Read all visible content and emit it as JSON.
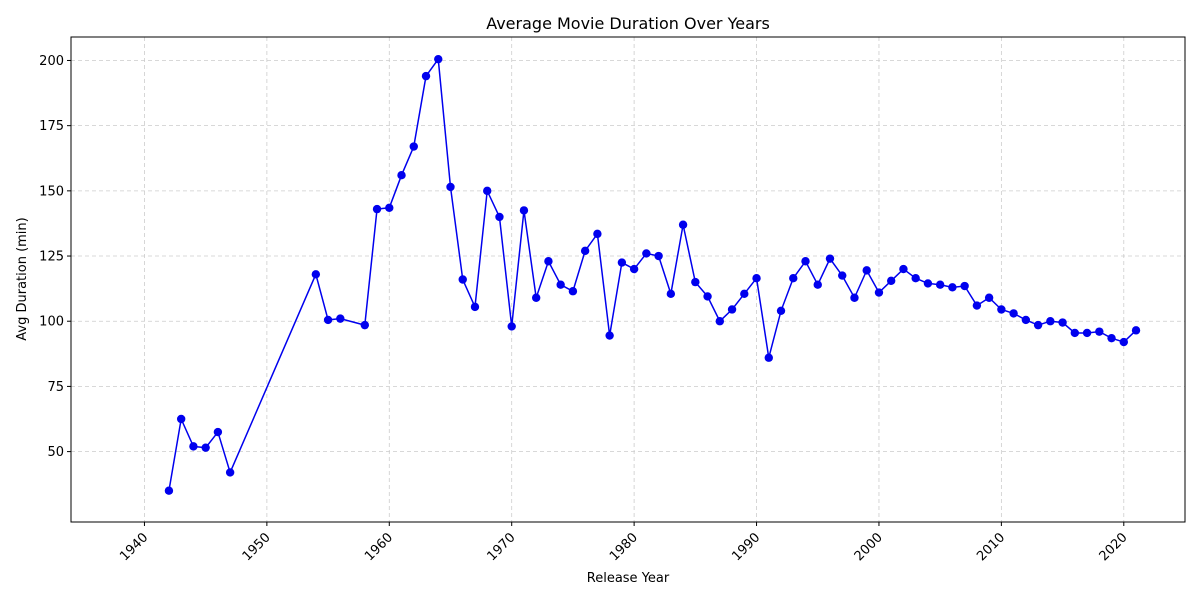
{
  "chart_data": {
    "type": "line",
    "title": "Average Movie Duration Over Years",
    "xlabel": "Release Year",
    "ylabel": "Avg Duration (min)",
    "xlim": [
      1934,
      2025
    ],
    "ylim": [
      23,
      209
    ],
    "xticks": [
      1940,
      1950,
      1960,
      1970,
      1980,
      1990,
      2000,
      2010,
      2020
    ],
    "yticks": [
      50,
      75,
      100,
      125,
      150,
      175,
      200
    ],
    "grid": true,
    "color": "#0000ee",
    "series": [
      {
        "x": [
          1942,
          1943,
          1944,
          1945,
          1946,
          1947,
          1954,
          1955,
          1956,
          1958,
          1959,
          1960,
          1961,
          1962,
          1963,
          1964,
          1965,
          1966,
          1967,
          1968,
          1969,
          1970,
          1971,
          1972,
          1973,
          1974,
          1975,
          1976,
          1977,
          1978,
          1979,
          1980,
          1981,
          1982,
          1983,
          1984,
          1985,
          1986,
          1987,
          1988,
          1989,
          1990,
          1991,
          1992,
          1993,
          1994,
          1995,
          1996,
          1997,
          1998,
          1999,
          2000,
          2001,
          2002,
          2003,
          2004,
          2005,
          2006,
          2007,
          2008,
          2009,
          2010,
          2011,
          2012,
          2013,
          2014,
          2015,
          2016,
          2017,
          2018,
          2019,
          2020,
          2021
        ],
        "y": [
          35,
          62.5,
          52,
          51.5,
          57.5,
          42,
          118,
          100.5,
          101,
          98.5,
          143,
          143.5,
          156,
          167,
          194,
          200.5,
          151.5,
          116,
          105.5,
          150,
          140,
          98,
          142.5,
          109,
          123,
          114,
          111.5,
          127,
          133.5,
          94.5,
          122.5,
          120,
          126,
          125,
          110.5,
          137,
          115,
          109.5,
          100,
          104.5,
          110.5,
          116.5,
          86,
          104,
          116.5,
          123,
          114,
          124,
          117.5,
          109,
          119.5,
          111,
          115.5,
          120,
          116.5,
          114.5,
          114,
          113,
          113.5,
          106,
          109,
          104.5,
          103,
          100.5,
          98.5,
          100,
          99.5,
          95.5,
          95.5,
          96,
          93.5,
          92,
          96.5
        ]
      }
    ]
  }
}
